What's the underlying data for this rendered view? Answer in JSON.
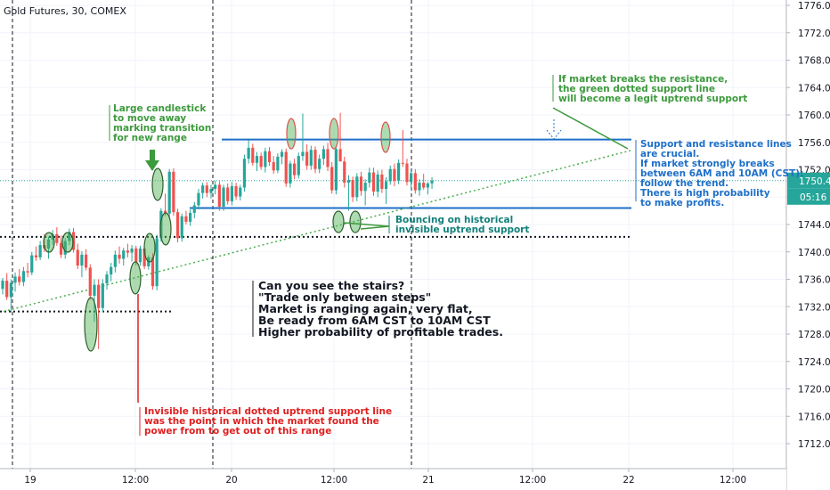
{
  "header": {
    "symbol": "Gold Futures, 30, COMEX"
  },
  "chart_data": {
    "type": "candlestick",
    "ylim": [
      1708.5,
      1778.0
    ],
    "y_ticks": [
      1712,
      1716,
      1720,
      1724,
      1728,
      1732,
      1736,
      1740,
      1744,
      1748,
      1752,
      1756,
      1760,
      1764,
      1768,
      1772,
      1776
    ],
    "x_ticks": [
      "19",
      "12:00",
      "20",
      "12:00",
      "21",
      "12:00",
      "22",
      "12:00"
    ],
    "last_price": "1750.4",
    "countdown": "05:16",
    "resistance": 1756.4,
    "support": 1746.4,
    "colors": {
      "up": "#26a69a",
      "down": "#ef5350",
      "support_line": "#1e6fc8",
      "uptrend": "#4caf50",
      "annotation": "#e02020"
    },
    "candles": [
      [
        1734.6,
        1736.2,
        1733.8,
        1735.8
      ],
      [
        1735.8,
        1736.9,
        1733.0,
        1733.4
      ],
      [
        1733.4,
        1736.0,
        1731.2,
        1735.5
      ],
      [
        1735.5,
        1737.0,
        1734.2,
        1736.4
      ],
      [
        1736.4,
        1737.5,
        1735.1,
        1735.6
      ],
      [
        1735.6,
        1737.8,
        1735.0,
        1737.2
      ],
      [
        1737.2,
        1738.4,
        1736.3,
        1737.0
      ],
      [
        1737.0,
        1740.0,
        1736.6,
        1739.5
      ],
      [
        1739.5,
        1740.8,
        1738.7,
        1739.2
      ],
      [
        1739.2,
        1741.6,
        1738.8,
        1741.0
      ],
      [
        1741.0,
        1742.6,
        1740.0,
        1740.5
      ],
      [
        1740.5,
        1742.2,
        1739.0,
        1741.8
      ],
      [
        1741.8,
        1743.2,
        1741.0,
        1742.6
      ],
      [
        1742.6,
        1743.6,
        1740.9,
        1741.3
      ],
      [
        1741.3,
        1742.4,
        1739.1,
        1739.6
      ],
      [
        1739.6,
        1742.0,
        1739.0,
        1741.6
      ],
      [
        1741.6,
        1743.4,
        1741.0,
        1742.9
      ],
      [
        1742.9,
        1743.5,
        1739.9,
        1740.3
      ],
      [
        1740.3,
        1741.2,
        1737.5,
        1738.0
      ],
      [
        1738.0,
        1740.1,
        1736.3,
        1739.6
      ],
      [
        1739.6,
        1740.4,
        1737.3,
        1737.7
      ],
      [
        1737.7,
        1738.2,
        1733.0,
        1733.6
      ],
      [
        1733.6,
        1736.0,
        1729.8,
        1735.2
      ],
      [
        1735.2,
        1736.0,
        1725.8,
        1731.8
      ],
      [
        1731.8,
        1736.0,
        1731.2,
        1735.4
      ],
      [
        1735.4,
        1737.2,
        1734.5,
        1736.7
      ],
      [
        1736.7,
        1738.4,
        1735.7,
        1737.8
      ],
      [
        1737.8,
        1740.2,
        1737.0,
        1739.6
      ],
      [
        1739.6,
        1740.8,
        1738.3,
        1739.0
      ],
      [
        1739.0,
        1740.6,
        1738.0,
        1740.2
      ],
      [
        1740.2,
        1741.2,
        1739.2,
        1739.9
      ],
      [
        1739.9,
        1741.0,
        1738.6,
        1740.5
      ],
      [
        1740.5,
        1740.9,
        1738.0,
        1738.5
      ],
      [
        1738.5,
        1740.9,
        1738.0,
        1740.5
      ],
      [
        1740.5,
        1740.9,
        1737.5,
        1737.9
      ],
      [
        1737.9,
        1739.5,
        1737.4,
        1739.2
      ],
      [
        1739.2,
        1739.8,
        1734.5,
        1735.0
      ],
      [
        1735.0,
        1742.5,
        1734.4,
        1742.0
      ],
      [
        1742.0,
        1746.4,
        1741.5,
        1746.0
      ],
      [
        1746.0,
        1748.5,
        1745.2,
        1745.6
      ],
      [
        1745.6,
        1752.1,
        1744.9,
        1751.7
      ],
      [
        1751.7,
        1752.2,
        1745.3,
        1745.8
      ],
      [
        1745.8,
        1746.3,
        1741.4,
        1742.0
      ],
      [
        1742.0,
        1745.6,
        1741.5,
        1745.2
      ],
      [
        1745.2,
        1746.0,
        1744.0,
        1744.4
      ],
      [
        1744.4,
        1746.2,
        1743.8,
        1745.7
      ],
      [
        1745.7,
        1747.3,
        1744.9,
        1746.8
      ],
      [
        1746.8,
        1749.2,
        1746.2,
        1748.6
      ],
      [
        1748.6,
        1750.1,
        1747.8,
        1749.7
      ],
      [
        1749.7,
        1750.2,
        1748.0,
        1748.6
      ],
      [
        1748.6,
        1749.8,
        1747.8,
        1749.2
      ],
      [
        1749.2,
        1750.4,
        1748.4,
        1749.8
      ],
      [
        1749.8,
        1750.3,
        1746.0,
        1746.6
      ],
      [
        1746.6,
        1749.8,
        1746.0,
        1749.4
      ],
      [
        1749.4,
        1750.0,
        1746.9,
        1747.4
      ],
      [
        1747.4,
        1750.2,
        1746.8,
        1749.6
      ],
      [
        1749.6,
        1750.1,
        1747.6,
        1748.1
      ],
      [
        1748.1,
        1749.8,
        1747.5,
        1749.4
      ],
      [
        1749.4,
        1754.2,
        1748.8,
        1753.6
      ],
      [
        1753.6,
        1756.3,
        1752.9,
        1755.2
      ],
      [
        1755.2,
        1755.8,
        1752.6,
        1753.0
      ],
      [
        1753.0,
        1754.6,
        1751.8,
        1754.0
      ],
      [
        1754.0,
        1754.5,
        1752.0,
        1752.4
      ],
      [
        1752.4,
        1755.2,
        1751.6,
        1754.7
      ],
      [
        1754.7,
        1755.3,
        1752.6,
        1753.1
      ],
      [
        1753.1,
        1754.0,
        1751.4,
        1751.9
      ],
      [
        1751.9,
        1754.4,
        1751.5,
        1753.9
      ],
      [
        1753.9,
        1755.0,
        1752.8,
        1754.6
      ],
      [
        1754.6,
        1755.1,
        1749.5,
        1750.0
      ],
      [
        1750.0,
        1753.3,
        1749.4,
        1752.9
      ],
      [
        1752.9,
        1753.6,
        1750.6,
        1751.2
      ],
      [
        1751.2,
        1754.5,
        1750.7,
        1754.0
      ],
      [
        1754.0,
        1760.2,
        1753.3,
        1754.6
      ],
      [
        1754.6,
        1755.7,
        1752.0,
        1752.6
      ],
      [
        1752.6,
        1755.5,
        1752.0,
        1754.9
      ],
      [
        1754.9,
        1755.4,
        1751.5,
        1752.1
      ],
      [
        1752.1,
        1754.2,
        1751.5,
        1753.6
      ],
      [
        1753.6,
        1755.5,
        1752.7,
        1755.0
      ],
      [
        1755.0,
        1755.9,
        1751.8,
        1752.4
      ],
      [
        1752.4,
        1753.1,
        1748.5,
        1749.0
      ],
      [
        1749.0,
        1755.5,
        1748.4,
        1755.0
      ],
      [
        1755.0,
        1760.3,
        1753.7,
        1753.2
      ],
      [
        1753.2,
        1753.9,
        1749.4,
        1750.1
      ],
      [
        1750.1,
        1751.2,
        1746.0,
        1750.5
      ],
      [
        1750.5,
        1751.0,
        1747.3,
        1748.0
      ],
      [
        1748.0,
        1751.5,
        1747.4,
        1751.0
      ],
      [
        1751.0,
        1751.7,
        1748.2,
        1748.9
      ],
      [
        1748.9,
        1750.6,
        1746.8,
        1750.1
      ],
      [
        1750.1,
        1752.3,
        1749.4,
        1751.6
      ],
      [
        1751.6,
        1752.3,
        1748.2,
        1748.8
      ],
      [
        1748.8,
        1751.9,
        1748.0,
        1751.3
      ],
      [
        1751.3,
        1752.0,
        1748.6,
        1749.2
      ],
      [
        1749.2,
        1750.9,
        1747.0,
        1750.3
      ],
      [
        1750.3,
        1752.6,
        1749.8,
        1752.1
      ],
      [
        1752.1,
        1752.9,
        1749.6,
        1750.4
      ],
      [
        1750.4,
        1753.5,
        1749.9,
        1753.0
      ],
      [
        1753.0,
        1757.8,
        1752.4,
        1752.9
      ],
      [
        1752.9,
        1753.6,
        1749.7,
        1750.2
      ],
      [
        1750.2,
        1752.0,
        1749.0,
        1751.5
      ],
      [
        1751.5,
        1752.1,
        1748.5,
        1749.0
      ],
      [
        1749.0,
        1750.6,
        1748.2,
        1750.1
      ],
      [
        1750.1,
        1751.4,
        1749.1,
        1749.4
      ],
      [
        1749.4,
        1750.2,
        1748.4,
        1750.0
      ],
      [
        1750.0,
        1750.9,
        1749.2,
        1750.4
      ]
    ],
    "annotations": [
      {
        "text": "Large candlestick\nto move away\nmarking transition\nfor new range",
        "color": "green"
      },
      {
        "text": "If market breaks the resistance,\nthe green dotted support line\nwill become a legit uptrend support",
        "color": "green"
      },
      {
        "text": "Support and resistance lines\nare crucial.\nIf market strongly breaks\nbetween 6AM and 10AM (CST):\nfollow the trend.\nThere is high probability\nto make profits.",
        "color": "blue"
      },
      {
        "text": "Bouncing on historical\ninvisible uptrend support",
        "color": "teal"
      },
      {
        "text": "Can you see the stairs?\n\"Trade only between steps\"\nMarket is ranging again, very flat,\nBe ready from 6AM CST to 10AM CST\nHigher probability of profitable trades.",
        "color": "black"
      },
      {
        "text": "Invisible historical dotted uptrend support line\nwas the point in which the market found the\npower from to get out of this range",
        "color": "red"
      }
    ]
  }
}
